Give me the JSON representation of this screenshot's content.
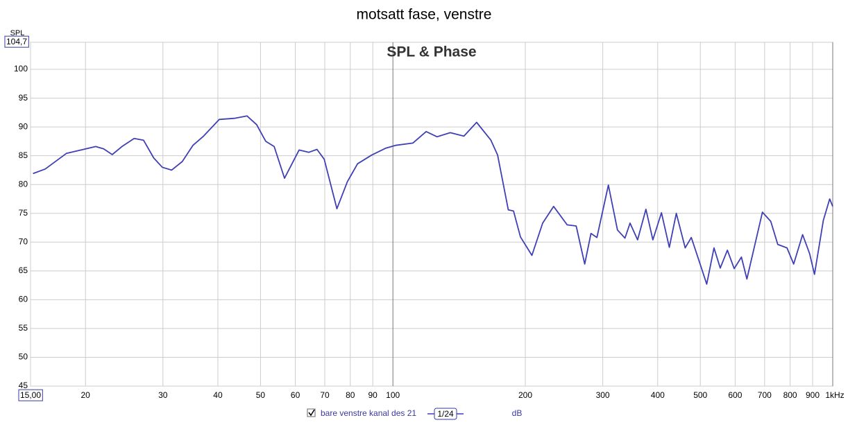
{
  "chart_data": {
    "type": "line",
    "title": "motsatt fase, venstre",
    "subtitle": "SPL & Phase",
    "ylabel": "SPL",
    "xscale": "log",
    "grid": true,
    "smoothing": "1/24",
    "unit": "dB",
    "xlim": [
      15,
      1000
    ],
    "ylim": [
      45,
      104.7
    ],
    "xticks": [
      {
        "value": 15,
        "label": "15,00"
      },
      20,
      30,
      40,
      50,
      60,
      70,
      80,
      90,
      100,
      200,
      300,
      400,
      500,
      600,
      700,
      800,
      900,
      {
        "value": 1000,
        "label": "1kHz"
      }
    ],
    "yticks": [
      45,
      50,
      55,
      60,
      65,
      70,
      75,
      80,
      85,
      90,
      95,
      100,
      {
        "value": 104.7,
        "label": "104,7"
      }
    ],
    "x": [
      15.2,
      16.2,
      18.1,
      19.8,
      21.1,
      22.0,
      23.0,
      24.2,
      25.8,
      27.1,
      28.6,
      29.9,
      31.4,
      33.2,
      35.1,
      37.1,
      40.3,
      43.6,
      46.6,
      49.0,
      51.4,
      53.7,
      56.7,
      61.2,
      64.4,
      67.2,
      69.8,
      74.6,
      78.8,
      83.1,
      89.4,
      96.2,
      101.4,
      111,
      119,
      126,
      135,
      145,
      155,
      167,
      173,
      183,
      188,
      195,
      207,
      219,
      232,
      249,
      261,
      273,
      282,
      291,
      309,
      324,
      337,
      346,
      360,
      376,
      390,
      408,
      425,
      441,
      462,
      477,
      497,
      517,
      537,
      555,
      576,
      597,
      620,
      638,
      692,
      723,
      750,
      787,
      815,
      854,
      886,
      909,
      952,
      984,
      1000
    ],
    "series": [
      {
        "name": "bare venstre kanal des 21",
        "color": "#3f3fb5",
        "values": [
          81.9,
          82.7,
          85.4,
          86.1,
          86.6,
          86.2,
          85.2,
          86.6,
          88.0,
          87.7,
          84.6,
          83.0,
          82.5,
          84.0,
          86.8,
          88.4,
          91.3,
          91.5,
          91.9,
          90.4,
          87.5,
          86.6,
          81.1,
          86.0,
          85.6,
          86.1,
          84.4,
          75.8,
          80.5,
          83.6,
          85.1,
          86.3,
          86.8,
          87.2,
          89.2,
          88.3,
          89.0,
          88.4,
          90.8,
          87.7,
          85.1,
          75.6,
          75.4,
          70.9,
          67.7,
          73.3,
          76.2,
          73.0,
          72.8,
          66.2,
          71.5,
          70.8,
          79.9,
          72.1,
          70.7,
          73.3,
          70.4,
          75.7,
          70.4,
          75.1,
          69.1,
          75.0,
          69.0,
          70.8,
          66.7,
          62.7,
          69.0,
          65.5,
          68.6,
          65.4,
          67.4,
          63.6,
          75.2,
          73.6,
          69.6,
          69.0,
          66.2,
          71.3,
          68.0,
          64.4,
          73.8,
          77.5,
          76.2
        ]
      }
    ]
  }
}
